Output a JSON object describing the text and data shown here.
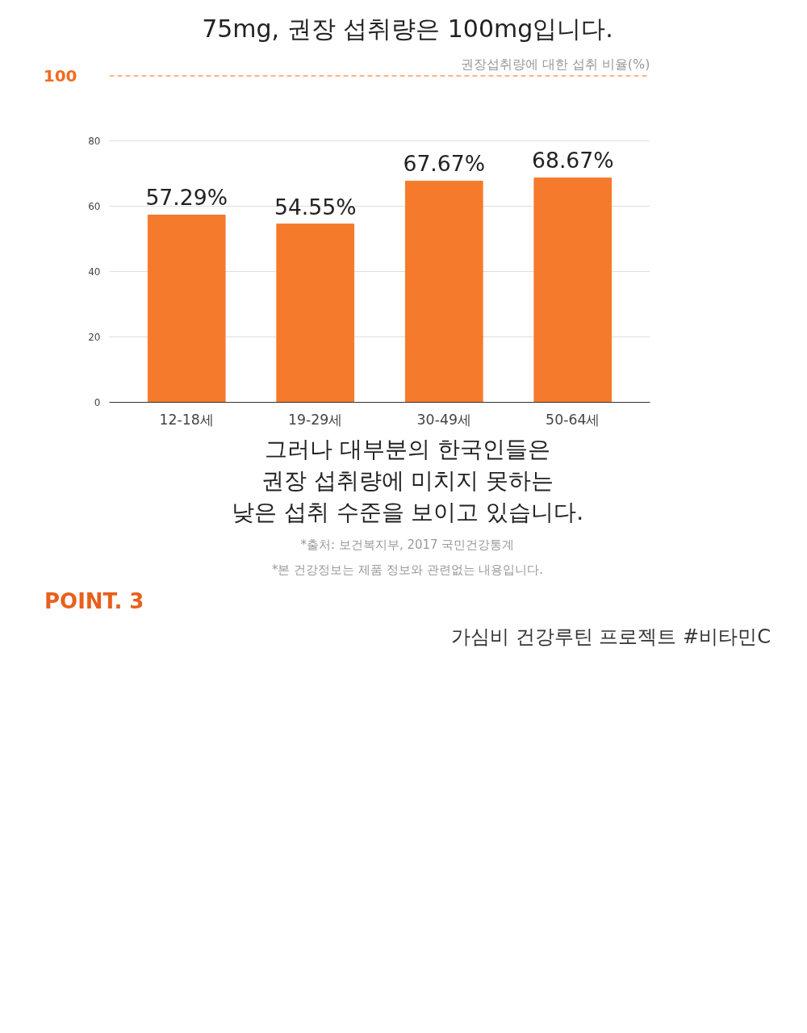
{
  "chart_data": {
    "type": "bar",
    "title": "75mg, 권장 섭취량은 100mg입니다.",
    "ylabel": "권장섭취량에 대한 섭취 비율(%)",
    "categories": [
      "12-18세",
      "19-29세",
      "30-49세",
      "50-64세"
    ],
    "values": [
      57.29,
      54.55,
      67.67,
      68.67
    ],
    "value_labels": [
      "57.29%",
      "54.55%",
      "67.67%",
      "68.67%"
    ],
    "color": "#f57a2c",
    "ylim": [
      0,
      100
    ],
    "yticks": [
      0,
      20,
      40,
      60,
      80
    ],
    "grid": "y",
    "ref_lines": [
      {
        "axis": "y",
        "value": 100,
        "label": "100",
        "color": "#f26b21",
        "line_style": "dashed"
      }
    ],
    "annotations": [
      "그러나 대부분의 한국인들은\n권장 섭취량에 미치지 못하는\n낮은 섭취 수준을 보이고 있습니다.",
      "*출처: 보건복지부, 2017 국민건강통계",
      "*본 건강정보는 제품 정보와 관련없는 내용입니다.",
      "POINT. 3",
      "가심비 건강루틴 프로젝트 #비타민C"
    ]
  }
}
